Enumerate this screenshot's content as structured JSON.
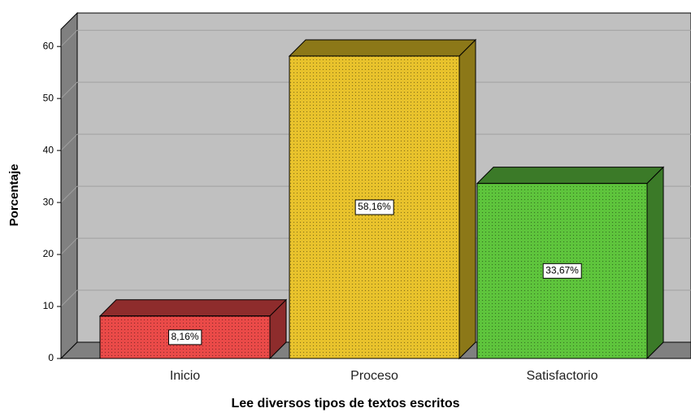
{
  "chart_data": {
    "type": "bar3d",
    "x_label": "Lee diversos tipos de textos escritos",
    "y_label": "Porcentaje",
    "categories": [
      "Inicio",
      "Proceso",
      "Satisfactorio"
    ],
    "values": [
      8.16,
      58.16,
      33.67
    ],
    "value_labels": [
      "8,16%",
      "58,16%",
      "33,67%"
    ],
    "colors": [
      "#ea4a48",
      "#e8c22c",
      "#5ec43c"
    ],
    "top_colors": [
      "#8e2c2c",
      "#8c7818",
      "#3b7a28"
    ],
    "ylim": [
      0,
      63
    ],
    "yticks": [
      0,
      10,
      20,
      30,
      40,
      50,
      60
    ],
    "grid": true
  }
}
